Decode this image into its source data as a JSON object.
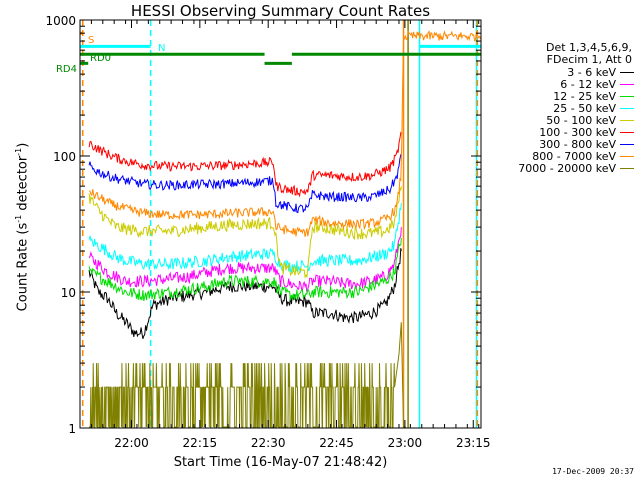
{
  "chart_data": {
    "type": "line",
    "title": "HESSI Observing Summary Count Rates",
    "xlabel": "Start Time (16-May-07 21:48:42)",
    "ylabel_main": "Count Rate (s",
    "ylabel_sup1": "-1",
    "ylabel_mid": " detector",
    "ylabel_sup2": "-1",
    "ylabel_end": ")",
    "x_unit": "minutes after 21:48:42",
    "xlim": [
      0,
      88
    ],
    "ylim": [
      1,
      1000
    ],
    "yscale": "log",
    "x_ticks": [
      {
        "value": 11.3,
        "label": "22:00"
      },
      {
        "value": 26.3,
        "label": "22:15"
      },
      {
        "value": 41.3,
        "label": "22:30"
      },
      {
        "value": 56.3,
        "label": "22:45"
      },
      {
        "value": 71.3,
        "label": "23:00"
      },
      {
        "value": 86.3,
        "label": "23:15"
      }
    ],
    "y_ticks": [
      {
        "value": 1,
        "label": "1"
      },
      {
        "value": 10,
        "label": "10"
      },
      {
        "value": 100,
        "label": "100"
      },
      {
        "value": 1000,
        "label": "1000"
      }
    ],
    "legend_header": [
      "Det 1,3,4,5,6,9,",
      "FDecim 1, Att 0"
    ],
    "legend_position": "right",
    "series": [
      {
        "name": "3 - 6 keV",
        "color": "#000000",
        "x": [
          2,
          4,
          6,
          8,
          10,
          12,
          14,
          16,
          20,
          24,
          28,
          32,
          36,
          40,
          42.5,
          44,
          46,
          48,
          50,
          51,
          53,
          55,
          58,
          61,
          64,
          67,
          69,
          70.5
        ],
        "y": [
          14,
          10,
          9,
          7,
          6,
          5,
          5,
          8,
          9,
          9.5,
          10,
          11,
          11,
          11,
          11,
          9,
          8.5,
          8.5,
          8.5,
          7,
          7,
          7,
          6.5,
          6.5,
          7,
          8,
          11,
          20
        ]
      },
      {
        "name": "6 - 12 keV",
        "color": "#ff00ff",
        "x": [
          2,
          4,
          6,
          8,
          10,
          14,
          20,
          24,
          28,
          32,
          36,
          40,
          42.5,
          44,
          46,
          48,
          50,
          51,
          53,
          55,
          58,
          61,
          64,
          67,
          69,
          70.5
        ],
        "y": [
          18,
          16,
          14,
          13,
          12,
          12,
          12.5,
          13,
          14,
          15,
          15,
          15,
          15,
          12,
          11.5,
          11,
          11,
          12,
          12,
          12,
          11.5,
          11.5,
          12,
          13,
          16,
          30
        ]
      },
      {
        "name": "12 - 25 keV",
        "color": "#00dd00",
        "x": [
          2,
          4,
          6,
          8,
          10,
          14,
          20,
          24,
          28,
          32,
          36,
          40,
          42.5,
          44,
          46,
          48,
          50,
          51,
          53,
          55,
          58,
          61,
          64,
          67,
          69,
          70.5
        ],
        "y": [
          14,
          13,
          12,
          11,
          10,
          9.5,
          10,
          10.5,
          11,
          12,
          12,
          12,
          12,
          10,
          9.5,
          9.5,
          9.5,
          10,
          10,
          10,
          10,
          10,
          11,
          12,
          14,
          25
        ]
      },
      {
        "name": "25 - 50 keV",
        "color": "#00ffff",
        "x": [
          2,
          4,
          6,
          8,
          10,
          14,
          20,
          24,
          28,
          32,
          36,
          40,
          42.5,
          44,
          46,
          48,
          50,
          51,
          53,
          55,
          58,
          61,
          64,
          67,
          69,
          70.5
        ],
        "y": [
          24,
          22,
          20,
          18,
          17,
          16,
          16,
          16.5,
          17,
          18,
          18.5,
          19,
          19,
          16,
          15.5,
          15.5,
          15.5,
          17,
          17,
          17,
          17,
          17,
          18,
          19,
          22,
          45
        ]
      },
      {
        "name": "50 - 100 keV",
        "color": "#cccc00",
        "x": [
          2,
          4,
          6,
          8,
          10,
          14,
          20,
          24,
          28,
          32,
          36,
          40,
          42.5,
          44,
          46,
          48,
          50,
          51,
          53,
          55,
          58,
          61,
          64,
          67,
          69,
          70.5
        ],
        "y": [
          50,
          40,
          34,
          30,
          29,
          28,
          28,
          29,
          30,
          31,
          31.5,
          32,
          32,
          15,
          14.5,
          14,
          14,
          30,
          30,
          29,
          28,
          27,
          27,
          28,
          32,
          60
        ]
      },
      {
        "name": "100 - 300 keV",
        "color": "#ff0000",
        "x": [
          2,
          3,
          5,
          7,
          9,
          11,
          14,
          18,
          22,
          26,
          30,
          34,
          38,
          42.5,
          43,
          46,
          48,
          50,
          51,
          53,
          55,
          58,
          61,
          64,
          66,
          68,
          69.5,
          70.5
        ],
        "y": [
          125,
          118,
          108,
          100,
          94,
          90,
          86,
          84,
          84,
          84,
          85,
          86,
          88,
          90,
          60,
          56,
          55,
          55,
          72,
          72,
          72,
          71,
          70,
          72,
          76,
          82,
          100,
          145
        ]
      },
      {
        "name": "300 - 800 keV",
        "color": "#0000ff",
        "x": [
          2,
          3,
          5,
          7,
          9,
          11,
          14,
          18,
          22,
          26,
          30,
          34,
          38,
          42.5,
          43,
          46,
          48,
          50,
          51,
          53,
          55,
          58,
          61,
          64,
          66,
          68,
          69.5,
          70.5
        ],
        "y": [
          85,
          80,
          74,
          70,
          67,
          65,
          62,
          61,
          61,
          62,
          62,
          63,
          64,
          66,
          45,
          42,
          41,
          41,
          52,
          51,
          50,
          50,
          49,
          50,
          53,
          57,
          70,
          100
        ]
      },
      {
        "name": "800 - 7000 keV",
        "color": "#ff8800",
        "x": [
          2,
          3,
          5,
          7,
          9,
          11,
          14,
          18,
          22,
          26,
          30,
          34,
          38,
          42.5,
          43,
          46,
          48,
          50,
          51,
          53,
          55,
          58,
          61,
          64,
          66,
          68,
          69.5,
          70.5,
          71,
          73,
          88
        ],
        "y": [
          56,
          52,
          48,
          44,
          42,
          40,
          38,
          37,
          37,
          37,
          37.5,
          38,
          38.5,
          39,
          30,
          28,
          27.5,
          27.5,
          34,
          33,
          32,
          32,
          31.5,
          32,
          33,
          36,
          42,
          75,
          760,
          760,
          760
        ]
      },
      {
        "name": "7000 - 20000 keV",
        "color": "#808000",
        "x": [
          2,
          69,
          70,
          70.5,
          71,
          71.5
        ],
        "y": [
          2.5,
          2.5,
          3.5,
          6,
          1,
          1
        ]
      }
    ],
    "status_bars": [
      {
        "label": "S",
        "color": "#ff8800",
        "segments": [
          {
            "start": 0,
            "end": 0.6,
            "value": 800
          }
        ]
      },
      {
        "label": "N",
        "color": "#00ffff",
        "segments": [
          {
            "start": 0,
            "end": 15.5,
            "value": 640
          },
          {
            "start": 74.5,
            "end": 88,
            "value": 640
          }
        ]
      },
      {
        "label": "RD4",
        "color": "#008800",
        "segments": [
          {
            "start": 0,
            "end": 1.8,
            "value": 480
          }
        ]
      },
      {
        "label": "RD0",
        "color": "#008800",
        "segments": [
          {
            "start": 0,
            "end": 40.5,
            "value": 560
          },
          {
            "start": 40.5,
            "end": 46.5,
            "value": 480
          },
          {
            "start": 46.5,
            "end": 88,
            "value": 560
          }
        ]
      }
    ],
    "vertical_markers": [
      {
        "x": 0.6,
        "color": "#ff8800",
        "style": "dashed"
      },
      {
        "x": 15.5,
        "color": "#00ffff",
        "style": "dashed"
      },
      {
        "x": 71,
        "color": "#ff8800",
        "style": "solid"
      },
      {
        "x": 72,
        "color": "#808000",
        "style": "solid"
      },
      {
        "x": 74.5,
        "color": "#00ffff",
        "style": "solid"
      },
      {
        "x": 87,
        "color": "#00ffff",
        "style": "solid"
      },
      {
        "x": 87.2,
        "color": "#ff8800",
        "style": "dashed"
      }
    ]
  },
  "footer_date": "17-Dec-2009 20:37"
}
